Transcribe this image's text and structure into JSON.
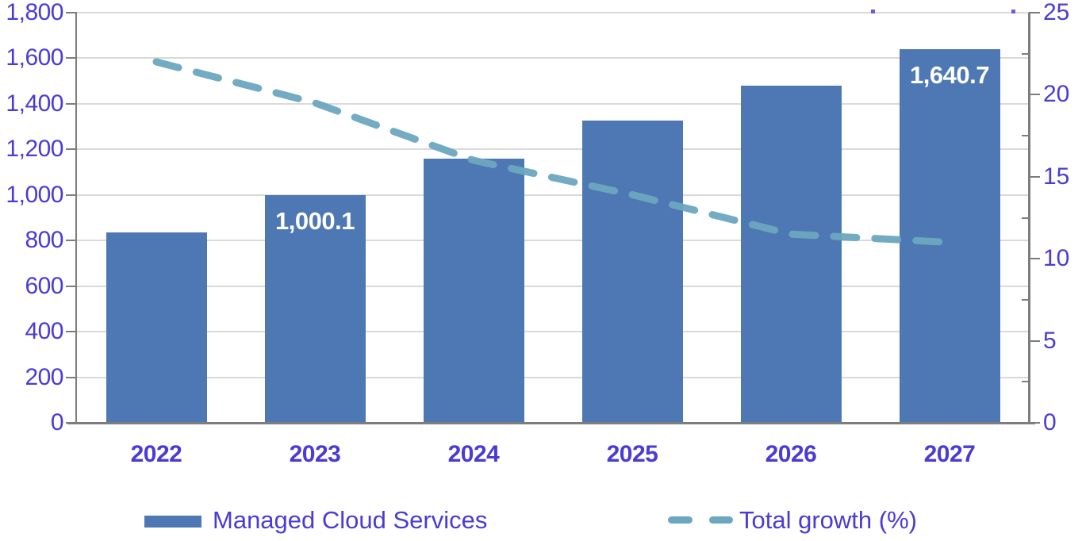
{
  "legend": {
    "series1": "Managed Cloud Services",
    "series2": "Total growth (%)"
  },
  "colors": {
    "bar": "#4e78b4",
    "line": "#6ca7c0",
    "axis_text": "#4a3bd6",
    "axis_line": "#7d7d7d",
    "gridline": "#d9d9d9",
    "bar_label": "#ffffff"
  },
  "chart_data": {
    "type": "bar",
    "title": "",
    "categories": [
      "2022",
      "2023",
      "2024",
      "2025",
      "2026",
      "2027"
    ],
    "series": [
      {
        "name": "Managed Cloud Services",
        "chart": "bar",
        "axis": "left",
        "values": [
          835,
          1000.1,
          1160,
          1325,
          1480,
          1640.7
        ],
        "value_labels": [
          "",
          "1,000.1",
          "",
          "",
          "",
          "1,640.7"
        ]
      },
      {
        "name": "Total growth (%)",
        "chart": "line",
        "line_style": "dashed",
        "axis": "right",
        "values": [
          22.0,
          19.5,
          16.0,
          13.9,
          11.5,
          11.0
        ]
      }
    ],
    "left_axis": {
      "min": 0,
      "max": 1800,
      "step": 200,
      "tick_labels": [
        "0",
        "200",
        "400",
        "600",
        "800",
        "1,000",
        "1,200",
        "1,400",
        "1,600",
        "1,800"
      ]
    },
    "right_axis": {
      "min": 0,
      "max": 25,
      "step": 5,
      "minor_tick_step": 2.5,
      "tick_labels": [
        "0",
        "5",
        "10",
        "15",
        "20",
        "25"
      ]
    },
    "grid": true,
    "legend_position": "bottom"
  }
}
